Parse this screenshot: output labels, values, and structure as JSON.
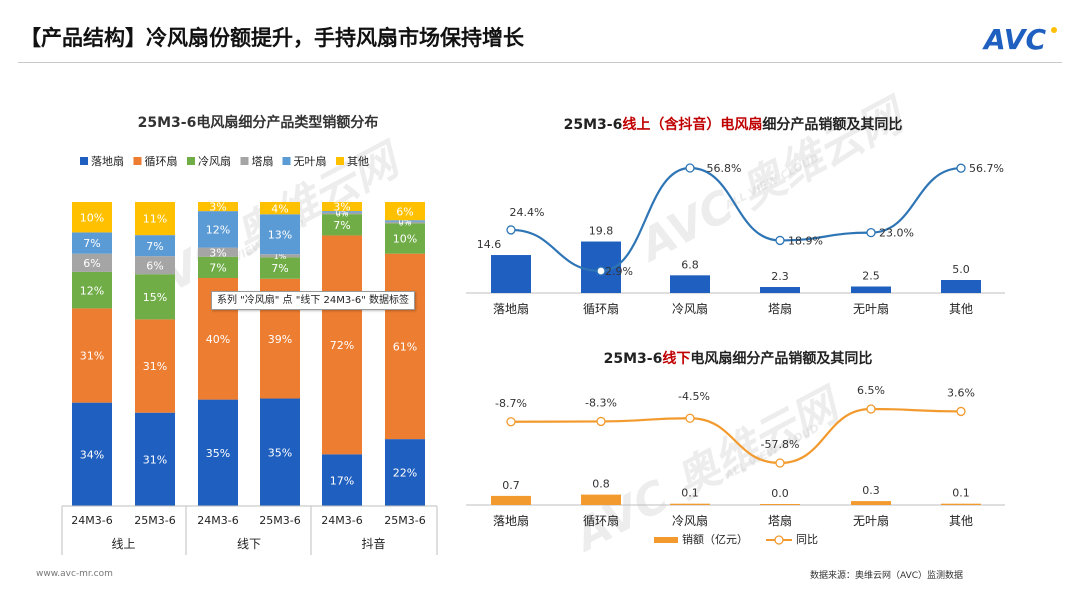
{
  "header": {
    "title": "【产品结构】冷风扇份额提升，手持风扇市场保持增长",
    "logo_text": "AVC"
  },
  "footer": {
    "website": "www.avc-mr.com",
    "source": "数据来源：奥维云网（AVC）监测数据"
  },
  "watermark": {
    "main": "AVC 奥维云网",
    "sub": "ALL VIEW CLOUD"
  },
  "colors": {
    "落地扇": "#1f5fbf",
    "循环扇": "#ed7d31",
    "冷风扇": "#70ad47",
    "塔扇": "#a5a5a5",
    "无叶扇": "#5b9bd5",
    "其他": "#ffc000",
    "sales_bar_online": "#1f5fbf",
    "yoy_line_online": "#2e75b6",
    "offline_orange": "#f29a2e"
  },
  "tooltip": "系列 \"冷风扇\" 点 \"线下 24M3-6\" 数据标签",
  "chart_data": [
    {
      "type": "bar",
      "stacked": true,
      "title": "25M3-6电风扇细分产品类型销额分布",
      "legend": [
        "落地扇",
        "循环扇",
        "冷风扇",
        "塔扇",
        "无叶扇",
        "其他"
      ],
      "legend_position": "top",
      "categories": [
        "24M3-6",
        "25M3-6",
        "24M3-6",
        "25M3-6",
        "24M3-6",
        "25M3-6"
      ],
      "groups": [
        {
          "label": "线上",
          "span": 2
        },
        {
          "label": "线下",
          "span": 2
        },
        {
          "label": "抖音",
          "span": 2
        }
      ],
      "series": [
        {
          "name": "落地扇",
          "values": [
            34,
            31,
            35,
            35,
            17,
            22
          ],
          "labels": [
            "34%",
            "31%",
            "35%",
            "35%",
            "17%",
            "22%"
          ]
        },
        {
          "name": "循环扇",
          "values": [
            31,
            31,
            40,
            39,
            72,
            61
          ],
          "labels": [
            "31%",
            "31%",
            "40%",
            "39%",
            "72%",
            "61%"
          ]
        },
        {
          "name": "冷风扇",
          "values": [
            12,
            15,
            7,
            7,
            7,
            10
          ],
          "labels": [
            "12%",
            "15%",
            "7%",
            "7%",
            "7%",
            "10%"
          ]
        },
        {
          "name": "塔扇",
          "values": [
            6,
            6,
            3,
            1,
            0.5,
            0.5
          ],
          "labels": [
            "6%",
            "6%",
            "3%",
            "1%",
            "0%",
            "0%"
          ]
        },
        {
          "name": "无叶扇",
          "values": [
            7,
            7,
            12,
            13,
            0.5,
            0.5
          ],
          "labels": [
            "7%",
            "7%",
            "12%",
            "13%",
            "0%",
            "0%"
          ]
        },
        {
          "name": "其他",
          "values": [
            10,
            11,
            3,
            4,
            3,
            6
          ],
          "labels": [
            "10%",
            "11%",
            "3%",
            "4%",
            "3%",
            "6%"
          ]
        }
      ],
      "ylim": [
        0,
        100
      ]
    },
    {
      "type": "bar",
      "title_parts": [
        {
          "text": "25M3-6",
          "color": "#222222"
        },
        {
          "text": "线上（含抖音）电风扇",
          "color": "#c00000"
        },
        {
          "text": "细分产品销额及其同比",
          "color": "#222222"
        }
      ],
      "categories": [
        "落地扇",
        "循环扇",
        "冷风扇",
        "塔扇",
        "无叶扇",
        "其他"
      ],
      "series": [
        {
          "name": "销额",
          "type": "bar",
          "values": [
            14.6,
            19.8,
            6.8,
            2.3,
            2.5,
            5.0
          ],
          "labels": [
            "14.6",
            "19.8",
            "6.8",
            "2.3",
            "2.5",
            "5.0"
          ]
        },
        {
          "name": "同比",
          "type": "line",
          "values": [
            24.4,
            2.9,
            56.8,
            18.9,
            23.0,
            56.7
          ],
          "labels": [
            "24.4%",
            "2.9%",
            "56.8%",
            "18.9%",
            "23.0%",
            "56.7%"
          ]
        }
      ]
    },
    {
      "type": "bar",
      "title_parts": [
        {
          "text": "25M3-6",
          "color": "#222222"
        },
        {
          "text": "线下",
          "color": "#c00000"
        },
        {
          "text": "电风扇细分产品销额及其同比",
          "color": "#222222"
        }
      ],
      "categories": [
        "落地扇",
        "循环扇",
        "冷风扇",
        "塔扇",
        "无叶扇",
        "其他"
      ],
      "series": [
        {
          "name": "销额（亿元）",
          "type": "bar",
          "values": [
            0.7,
            0.8,
            0.1,
            0.0,
            0.3,
            0.1
          ],
          "labels": [
            "0.7",
            "0.8",
            "0.1",
            "0.0",
            "0.3",
            "0.1"
          ]
        },
        {
          "name": "同比",
          "type": "line",
          "values": [
            -8.7,
            -8.3,
            -4.5,
            -57.8,
            6.5,
            3.6
          ],
          "labels": [
            "-8.7%",
            "-8.3%",
            "-4.5%",
            "-57.8%",
            "6.5%",
            "3.6%"
          ]
        }
      ],
      "legend": [
        "销额（亿元）",
        "同比"
      ],
      "legend_position": "bottom"
    }
  ]
}
